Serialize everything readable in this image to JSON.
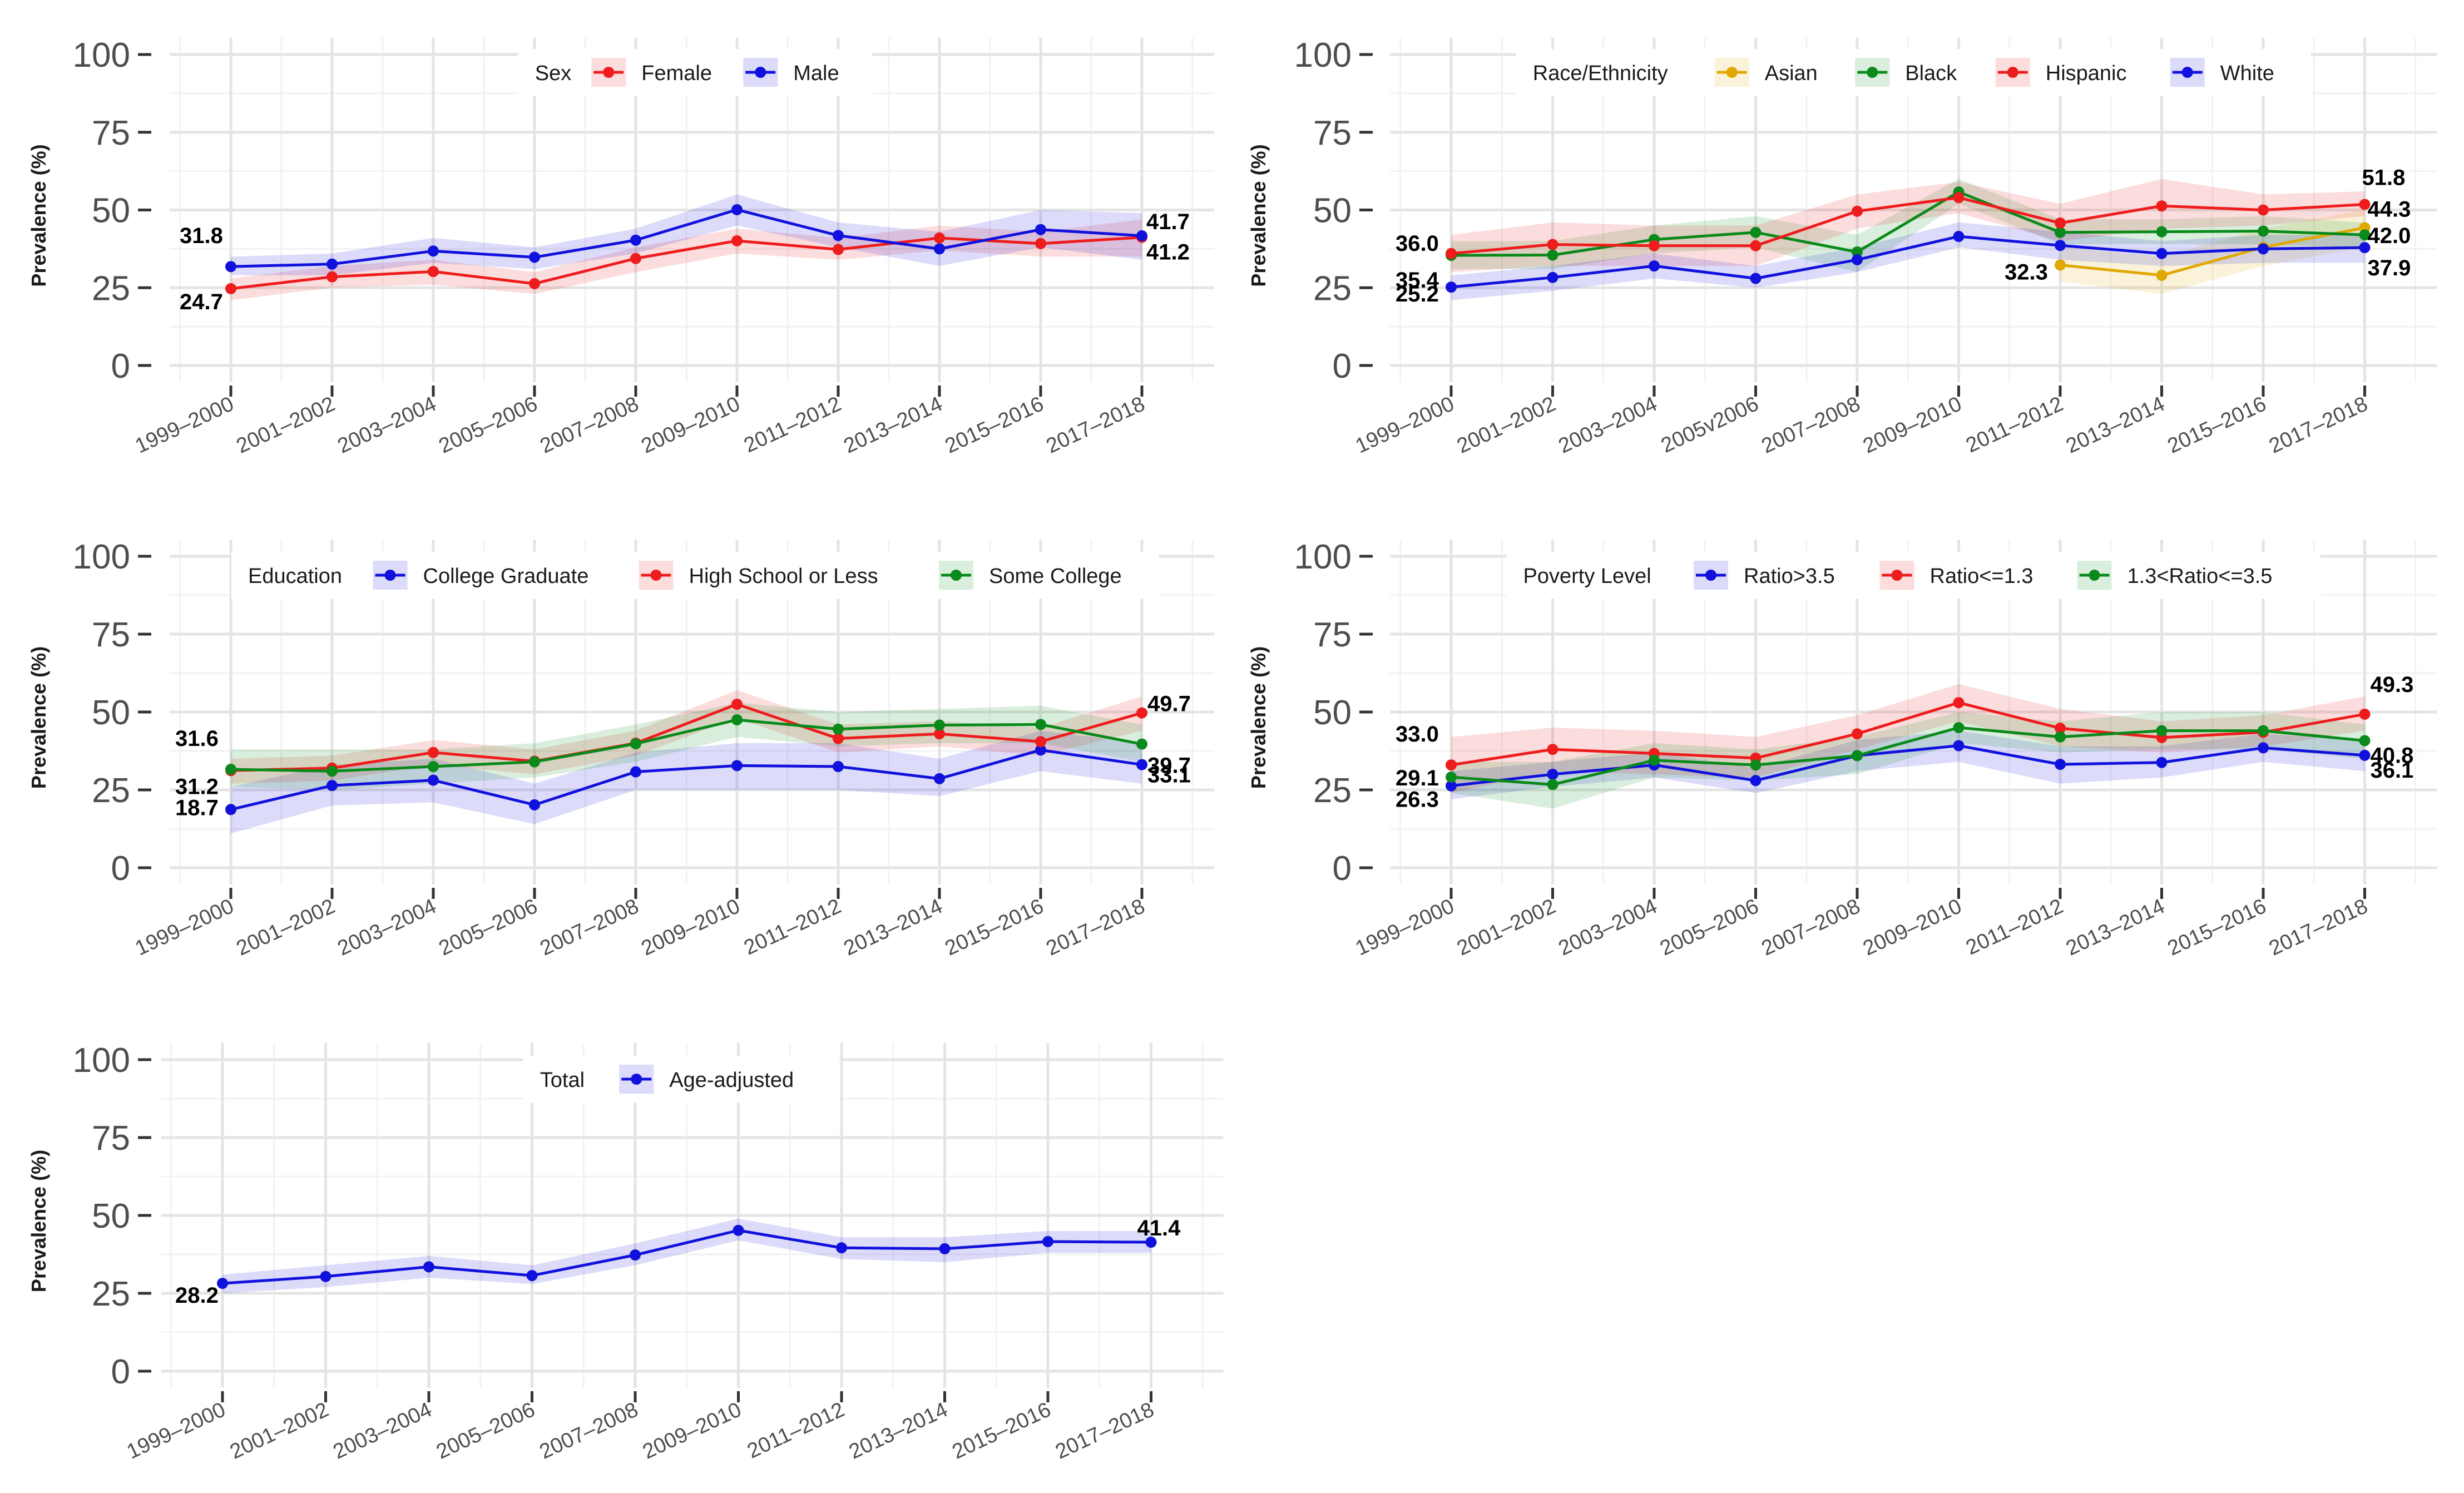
{
  "chart_data": [
    {
      "type": "line",
      "ylabel": "Prevalence (%)",
      "ylim": [
        0,
        100
      ],
      "yticks": [
        0,
        25,
        50,
        75,
        100
      ],
      "grid": true,
      "legend_title": "Sex",
      "legend_position": "top",
      "categories": [
        "1999–2000",
        "2001–2002",
        "2003–2004",
        "2005–2006",
        "2007–2008",
        "2009–2010",
        "2011–2012",
        "2013–2014",
        "2015–2016",
        "2017–2018"
      ],
      "series": [
        {
          "name": "Female",
          "color": "#ee1c1c",
          "values": [
            24.7,
            28.5,
            30.2,
            26.3,
            34.4,
            40.1,
            37.3,
            41.0,
            39.2,
            41.2
          ],
          "lower": [
            21,
            25,
            26,
            23,
            30,
            36,
            34,
            37,
            35,
            35
          ],
          "upper": [
            28,
            32,
            34,
            30,
            38,
            44,
            41,
            45,
            43,
            47
          ]
        },
        {
          "name": "Male",
          "color": "#1111dd",
          "values": [
            31.8,
            32.6,
            36.8,
            34.8,
            40.3,
            50.1,
            41.8,
            37.5,
            43.7,
            41.7
          ],
          "lower": [
            29,
            29,
            33,
            31,
            36,
            45,
            38,
            32,
            38,
            34
          ],
          "upper": [
            35,
            36,
            41,
            38,
            44,
            55,
            46,
            43,
            50,
            49
          ]
        }
      ],
      "data_labels": [
        {
          "series": "Male",
          "point": 0,
          "text": "31.8"
        },
        {
          "series": "Female",
          "point": 0,
          "text": "24.7"
        },
        {
          "series": "Male",
          "point": 9,
          "text": "41.7"
        },
        {
          "series": "Female",
          "point": 9,
          "text": "41.2"
        }
      ]
    },
    {
      "type": "line",
      "ylabel": "Prevalence (%)",
      "ylim": [
        0,
        100
      ],
      "yticks": [
        0,
        25,
        50,
        75,
        100
      ],
      "grid": true,
      "legend_title": "Race/Ethnicity",
      "legend_position": "top",
      "categories": [
        "1999–2000",
        "2001–2002",
        "2003–2004",
        "2005v2006",
        "2007–2008",
        "2009–2010",
        "2011–2012",
        "2013–2014",
        "2015–2016",
        "2017–2018"
      ],
      "series": [
        {
          "name": "Asian",
          "color": "#e0a800",
          "values": [
            null,
            null,
            null,
            null,
            null,
            null,
            32.3,
            29.0,
            38.0,
            44.3
          ],
          "lower": [
            null,
            null,
            null,
            null,
            null,
            null,
            27,
            23,
            32,
            38
          ],
          "upper": [
            null,
            null,
            null,
            null,
            null,
            null,
            38,
            35,
            44,
            50
          ]
        },
        {
          "name": "Black",
          "color": "#0a8a1a",
          "values": [
            35.4,
            35.5,
            40.5,
            42.8,
            36.5,
            55.8,
            42.8,
            43.0,
            43.2,
            42.0
          ],
          "lower": [
            31,
            31,
            36,
            38,
            30,
            52,
            39,
            39,
            39,
            38
          ],
          "upper": [
            40,
            40,
            45,
            48,
            42,
            60,
            47,
            47,
            48,
            46
          ]
        },
        {
          "name": "Hispanic",
          "color": "#ee1c1c",
          "values": [
            36.0,
            38.9,
            38.5,
            38.5,
            49.6,
            54.0,
            45.8,
            51.3,
            50.0,
            51.8
          ],
          "lower": [
            30,
            32,
            32,
            32,
            44,
            49,
            40,
            44,
            45,
            48
          ],
          "upper": [
            42,
            46,
            45,
            45,
            55,
            59,
            52,
            60,
            55,
            56
          ]
        },
        {
          "name": "White",
          "color": "#1111dd",
          "values": [
            25.2,
            28.3,
            32.0,
            28.0,
            34.0,
            41.5,
            38.6,
            36.0,
            37.5,
            37.9
          ],
          "lower": [
            21,
            24,
            28,
            25,
            30,
            38,
            34,
            32,
            33,
            33
          ],
          "upper": [
            29,
            32,
            36,
            32,
            38,
            46,
            43,
            40,
            42,
            42
          ]
        }
      ],
      "data_labels": [
        {
          "series": "Hispanic",
          "point": 0,
          "text": "36.0"
        },
        {
          "series": "Black",
          "point": 0,
          "text": "35.4"
        },
        {
          "series": "White",
          "point": 0,
          "text": "25.2"
        },
        {
          "series": "Asian",
          "point": 6,
          "text": "32.3"
        },
        {
          "series": "Hispanic",
          "point": 9,
          "text": "51.8"
        },
        {
          "series": "Asian",
          "point": 9,
          "text": "44.3"
        },
        {
          "series": "Black",
          "point": 9,
          "text": "42.0"
        },
        {
          "series": "White",
          "point": 9,
          "text": "37.9"
        }
      ]
    },
    {
      "type": "line",
      "ylabel": "Prevalence (%)",
      "ylim": [
        0,
        100
      ],
      "yticks": [
        0,
        25,
        50,
        75,
        100
      ],
      "grid": true,
      "legend_title": "Education",
      "legend_position": "top",
      "categories": [
        "1999–2000",
        "2001–2002",
        "2003–2004",
        "2005–2006",
        "2007–2008",
        "2009–2010",
        "2011–2012",
        "2013–2014",
        "2015–2016",
        "2017–2018"
      ],
      "series": [
        {
          "name": "College Graduate",
          "color": "#1111dd",
          "values": [
            18.7,
            26.4,
            28.1,
            20.2,
            30.8,
            32.8,
            32.5,
            28.6,
            37.8,
            33.1
          ],
          "lower": [
            11,
            20,
            21,
            14,
            25,
            25,
            25,
            23,
            31,
            27
          ],
          "upper": [
            26,
            33,
            35,
            27,
            37,
            40,
            40,
            35,
            44,
            40
          ]
        },
        {
          "name": "High School or Less",
          "color": "#ee1c1c",
          "values": [
            31.2,
            32.0,
            37.0,
            34.2,
            40.0,
            52.5,
            41.5,
            43.0,
            40.5,
            49.7
          ],
          "lower": [
            27,
            28,
            33,
            30,
            36,
            48,
            37,
            39,
            36,
            44
          ],
          "upper": [
            35,
            36,
            41,
            38,
            44,
            57,
            46,
            47,
            45,
            55
          ]
        },
        {
          "name": "Some College",
          "color": "#0a8a1a",
          "values": [
            31.6,
            31.0,
            32.5,
            34.0,
            39.8,
            47.5,
            44.5,
            45.8,
            46.0,
            39.7
          ],
          "lower": [
            26,
            25,
            27,
            29,
            34,
            42,
            39,
            40,
            40,
            34
          ],
          "upper": [
            38,
            38,
            38,
            40,
            46,
            53,
            50,
            51,
            52,
            46
          ]
        }
      ],
      "data_labels": [
        {
          "series": "Some College",
          "point": 0,
          "text": "31.6"
        },
        {
          "series": "High School or Less",
          "point": 0,
          "text": "31.2"
        },
        {
          "series": "College Graduate",
          "point": 0,
          "text": "18.7"
        },
        {
          "series": "High School or Less",
          "point": 9,
          "text": "49.7"
        },
        {
          "series": "Some College",
          "point": 9,
          "text": "39.7"
        },
        {
          "series": "College Graduate",
          "point": 9,
          "text": "33.1"
        }
      ]
    },
    {
      "type": "line",
      "ylabel": "Prevalence (%)",
      "ylim": [
        0,
        100
      ],
      "yticks": [
        0,
        25,
        50,
        75,
        100
      ],
      "grid": true,
      "legend_title": "Poverty Level",
      "legend_position": "top",
      "categories": [
        "1999–2000",
        "2001–2002",
        "2003–2004",
        "2005–2006",
        "2007–2008",
        "2009–2010",
        "2011–2012",
        "2013–2014",
        "2015–2016",
        "2017–2018"
      ],
      "series": [
        {
          "name": "Ratio>3.5",
          "color": "#1111dd",
          "values": [
            26.3,
            30.0,
            33.0,
            28.0,
            36.0,
            39.2,
            33.2,
            33.8,
            38.5,
            36.1
          ],
          "lower": [
            22,
            26,
            29,
            24,
            31,
            34,
            27,
            29,
            34,
            31
          ],
          "upper": [
            31,
            34,
            37,
            32,
            41,
            44,
            39,
            39,
            43,
            41
          ]
        },
        {
          "name": "Ratio<=1.3",
          "color": "#ee1c1c",
          "values": [
            33.0,
            38.0,
            36.7,
            35.2,
            43.0,
            53.0,
            44.8,
            41.8,
            43.5,
            49.3
          ],
          "lower": [
            24,
            31,
            30,
            29,
            38,
            47,
            39,
            37,
            39,
            44
          ],
          "upper": [
            42,
            45,
            44,
            42,
            49,
            59,
            51,
            47,
            49,
            55
          ]
        },
        {
          "name": "1.3<Ratio<=3.5",
          "color": "#0a8a1a",
          "values": [
            29.1,
            26.7,
            34.5,
            33.0,
            36.0,
            45.0,
            42.0,
            44.0,
            44.0,
            40.8
          ],
          "lower": [
            24,
            19,
            29,
            28,
            30,
            40,
            37,
            38,
            38,
            35
          ],
          "upper": [
            34,
            34,
            40,
            38,
            42,
            50,
            47,
            50,
            50,
            46
          ]
        }
      ],
      "data_labels": [
        {
          "series": "Ratio<=1.3",
          "point": 0,
          "text": "33.0"
        },
        {
          "series": "1.3<Ratio<=3.5",
          "point": 0,
          "text": "29.1"
        },
        {
          "series": "Ratio>3.5",
          "point": 0,
          "text": "26.3"
        },
        {
          "series": "Ratio<=1.3",
          "point": 9,
          "text": "49.3"
        },
        {
          "series": "1.3<Ratio<=3.5",
          "point": 9,
          "text": "40.8"
        },
        {
          "series": "Ratio>3.5",
          "point": 9,
          "text": "36.1"
        }
      ]
    },
    {
      "type": "line",
      "ylabel": "Prevalence (%)",
      "ylim": [
        0,
        100
      ],
      "yticks": [
        0,
        25,
        50,
        75,
        100
      ],
      "grid": true,
      "legend_title": "Total",
      "legend_position": "top",
      "categories": [
        "1999–2000",
        "2001–2002",
        "2003–2004",
        "2005–2006",
        "2007–2008",
        "2009–2010",
        "2011–2012",
        "2013–2014",
        "2015–2016",
        "2017–2018"
      ],
      "series": [
        {
          "name": "Age-adjusted",
          "color": "#1111dd",
          "values": [
            28.2,
            30.4,
            33.5,
            30.7,
            37.3,
            45.2,
            39.6,
            39.3,
            41.6,
            41.4
          ],
          "lower": [
            25,
            27,
            30,
            28,
            34,
            42,
            36,
            35,
            38,
            38
          ],
          "upper": [
            31,
            34,
            37,
            34,
            41,
            49,
            43,
            43,
            45,
            45
          ]
        }
      ],
      "data_labels": [
        {
          "series": "Age-adjusted",
          "point": 0,
          "text": "28.2"
        },
        {
          "series": "Age-adjusted",
          "point": 9,
          "text": "41.4"
        }
      ]
    }
  ]
}
